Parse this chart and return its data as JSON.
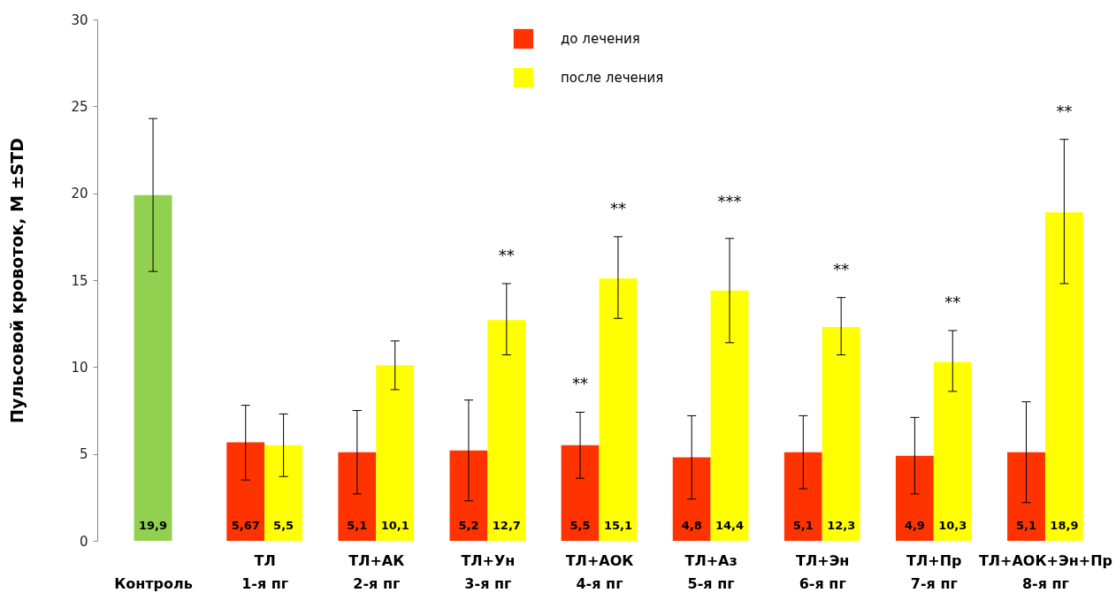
{
  "chart_data": {
    "type": "bar",
    "ylabel": "Пульсовой кровоток, M ±STD",
    "categories": [
      "Контроль",
      "ТЛ\n1-я пг",
      "ТЛ+АК\n2-я пг",
      "ТЛ+Ун\n3-я пг",
      "ТЛ+АОК\n4-я пг",
      "ТЛ+Аз\n5-я пг",
      "ТЛ+Эн\n6-я пг",
      "ТЛ+Пр\n7-я пг",
      "ТЛ+АОК+Эн+Пр\n8-я пг"
    ],
    "series": [
      {
        "color": "#92d050",
        "values": [
          19.9,
          null,
          null,
          null,
          null,
          null,
          null,
          null,
          null
        ],
        "errors": [
          [
            15.5,
            24.3
          ],
          null,
          null,
          null,
          null,
          null,
          null,
          null,
          null
        ],
        "value_labels": [
          "19,9",
          null,
          null,
          null,
          null,
          null,
          null,
          null,
          null
        ]
      },
      {
        "name": "до лечения",
        "color": "#ff3300",
        "values": [
          null,
          5.67,
          5.1,
          5.2,
          5.5,
          4.8,
          5.1,
          4.9,
          5.1
        ],
        "errors": [
          null,
          [
            3.5,
            7.8
          ],
          [
            2.7,
            7.5
          ],
          [
            2.3,
            8.1
          ],
          [
            3.6,
            7.4
          ],
          [
            2.4,
            7.2
          ],
          [
            3.0,
            7.2
          ],
          [
            2.7,
            7.1
          ],
          [
            2.2,
            8.0
          ]
        ],
        "value_labels": [
          null,
          "5,67",
          "5,1",
          "5,2",
          "5,5",
          "4,8",
          "5,1",
          "4,9",
          "5,1"
        ]
      },
      {
        "name": "после лечения",
        "color": "#ffff00",
        "values": [
          null,
          5.5,
          10.1,
          12.7,
          15.1,
          14.4,
          12.3,
          10.3,
          18.9
        ],
        "errors": [
          null,
          [
            3.7,
            7.3
          ],
          [
            8.7,
            11.5
          ],
          [
            10.7,
            14.8
          ],
          [
            12.8,
            17.5
          ],
          [
            11.4,
            17.4
          ],
          [
            10.7,
            14.0
          ],
          [
            8.6,
            12.1
          ],
          [
            14.8,
            23.1
          ]
        ],
        "value_labels": [
          null,
          "5,5",
          "10,1",
          "12,7",
          "15,1",
          "14,4",
          "12,3",
          "10,3",
          "18,9"
        ]
      }
    ],
    "annotations": [
      "**",
      "**",
      "**",
      "***",
      "**",
      "**",
      "**"
    ],
    "ylim": [
      0,
      30
    ],
    "yticks": [
      0,
      5,
      10,
      15,
      20,
      25,
      30
    ],
    "grid": false,
    "legend": "top"
  }
}
